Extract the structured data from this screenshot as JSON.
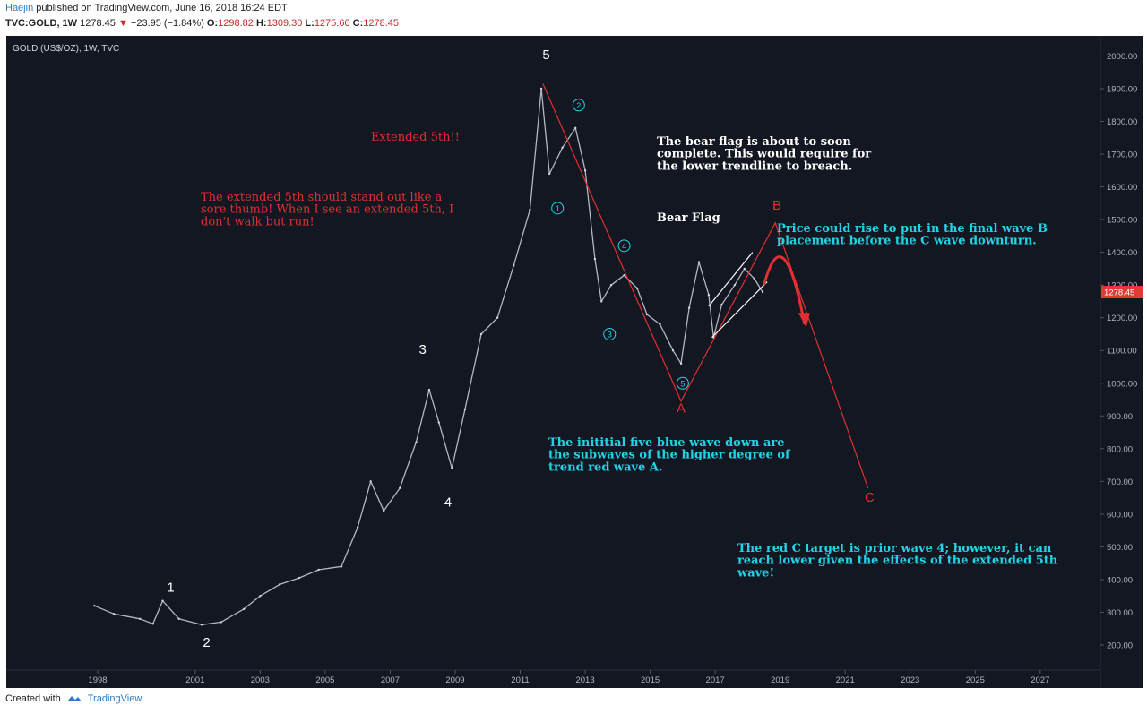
{
  "header": {
    "author": "Haejin",
    "published": "published on TradingView.com, June 16, 2018 16:24 EDT",
    "symbol": "TVC:GOLD, 1W",
    "last": "1278.45",
    "change_arrow": "▼",
    "change": "−23.95 (−1.84%)",
    "open_label": "O:",
    "open": "1298.82",
    "high_label": "H:",
    "high": "1309.30",
    "low_label": "L:",
    "low": "1275.60",
    "close_label": "C:",
    "close": "1278.45"
  },
  "chart_data": {
    "type": "line",
    "title": "GOLD (US$/OZ), 1W, TVC",
    "x_ticks": [
      "1998",
      "2001",
      "2003",
      "2005",
      "2007",
      "2009",
      "2011",
      "2013",
      "2015",
      "2017",
      "2019",
      "2021",
      "2023",
      "2025",
      "2027"
    ],
    "y_ticks": [
      "2000.00",
      "1900.00",
      "1800.00",
      "1700.00",
      "1600.00",
      "1500.00",
      "1400.00",
      "1300.00",
      "1200.00",
      "1100.00",
      "1000.00",
      "900.00",
      "800.00",
      "700.00",
      "600.00",
      "500.00",
      "400.00",
      "300.00",
      "200.00"
    ],
    "ylim": [
      150,
      2040
    ],
    "last_price": 1278.45,
    "series": [
      {
        "x": [
          1997.9,
          1998.5,
          1999.3,
          1999.7,
          2000.0,
          2000.5,
          2001.2,
          2001.8,
          2002.5,
          2003.0,
          2003.6,
          2004.2,
          2004.8,
          2005.5,
          2006.0,
          2006.4,
          2006.8,
          2007.3,
          2007.8,
          2008.2,
          2008.5,
          2008.9,
          2009.3,
          2009.8,
          2010.3,
          2010.8,
          2011.3,
          2011.65,
          2011.9,
          2012.3,
          2012.7,
          2013.0,
          2013.3,
          2013.5,
          2013.8,
          2014.2,
          2014.6,
          2014.9,
          2015.3,
          2015.7,
          2015.95,
          2016.2,
          2016.5,
          2016.8,
          2016.95,
          2017.2,
          2017.6,
          2017.9,
          2018.2,
          2018.46
        ],
        "y": [
          320,
          295,
          280,
          265,
          335,
          280,
          262,
          270,
          310,
          350,
          385,
          405,
          430,
          440,
          560,
          700,
          610,
          680,
          820,
          980,
          880,
          740,
          920,
          1150,
          1200,
          1360,
          1530,
          1900,
          1640,
          1720,
          1780,
          1650,
          1380,
          1250,
          1300,
          1330,
          1290,
          1210,
          1180,
          1100,
          1060,
          1230,
          1370,
          1270,
          1140,
          1240,
          1300,
          1350,
          1320,
          1278.45
        ]
      }
    ],
    "annotations": {
      "wave_white": [
        "1",
        "2",
        "3",
        "4",
        "5"
      ],
      "wave_blue": [
        "1",
        "2",
        "3",
        "4",
        "5"
      ],
      "wave_red": [
        "A",
        "B",
        "C"
      ],
      "texts": {
        "extended": "Extended 5th!!",
        "sore_thumb": "The extended 5th should stand out like a sore thumb! When I see an extended 5th, I don't walk but run!",
        "bear_flag_note": "The bear flag is about to soon complete. This would require for the lower trendline to breach.",
        "bear_flag": "Bear Flag",
        "price_rise": "Price could rise to put in the final wave B placement before the C wave downturn.",
        "five_blue": "The inititial five blue wave down are the subwaves of the higher degree of trend red wave A.",
        "c_target": "The red C target is prior wave 4; however, it can reach lower given the effects of the extended 5th wave!"
      }
    },
    "colors": {
      "background": "#131722",
      "price": "#d1d4dc",
      "red": "#e03030",
      "cyan": "#22d3e6",
      "white": "#ffffff",
      "last_badge": "#e53935"
    }
  },
  "footer": {
    "created": "Created with",
    "brand": "TradingView"
  }
}
